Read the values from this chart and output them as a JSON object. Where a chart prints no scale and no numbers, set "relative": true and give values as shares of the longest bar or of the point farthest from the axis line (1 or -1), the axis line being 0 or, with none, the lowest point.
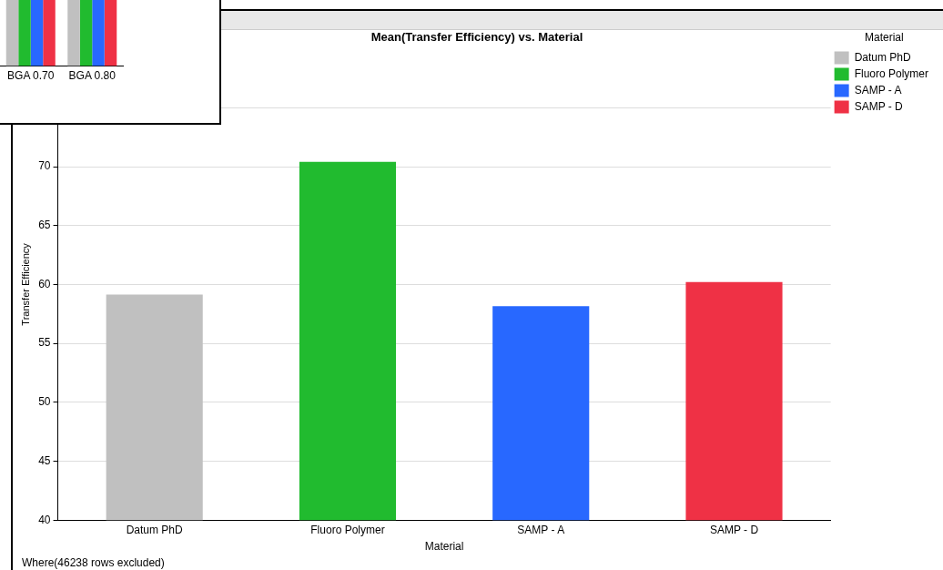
{
  "chart_data": [
    {
      "type": "bar",
      "title": "Mean(Transfer Efficiency) vs. Material",
      "xlabel": "Material",
      "ylabel": "Transfer Efficiency",
      "legend_title": "Material",
      "categories": [
        "Datum PhD",
        "Fluoro Polymer",
        "SAMP - A",
        "SAMP - D"
      ],
      "series": [
        {
          "name": "Datum PhD",
          "color": "#c0c0c0",
          "values": [
            59.15,
            null,
            null,
            null
          ]
        },
        {
          "name": "Fluoro Polymer",
          "color": "#21bb2f",
          "values": [
            null,
            70.4,
            null,
            null
          ]
        },
        {
          "name": "SAMP - A",
          "color": "#2868ff",
          "values": [
            null,
            null,
            58.15,
            null
          ]
        },
        {
          "name": "SAMP - D",
          "color": "#ef3145",
          "values": [
            null,
            null,
            null,
            60.2
          ]
        }
      ],
      "ylim": [
        40,
        80
      ],
      "yticks": [
        40,
        45,
        50,
        55,
        60,
        65,
        70,
        {
          "value": 75,
          "label": null
        }
      ],
      "grid": "y",
      "legend": "top right",
      "annotations": [
        "Where(46238 rows excluded)"
      ]
    },
    {
      "type": "bar",
      "relative": true,
      "categories": [
        "BGA 0.70",
        "BGA 0.80"
      ],
      "series": [
        {
          "color": "#c0c0c0",
          "values": [
            1,
            1
          ]
        },
        {
          "color": "#21bb2f",
          "values": [
            1,
            1
          ]
        },
        {
          "color": "#2868ff",
          "values": [
            1,
            1
          ]
        },
        {
          "color": "#ef3145",
          "values": [
            1,
            1
          ]
        }
      ]
    }
  ]
}
